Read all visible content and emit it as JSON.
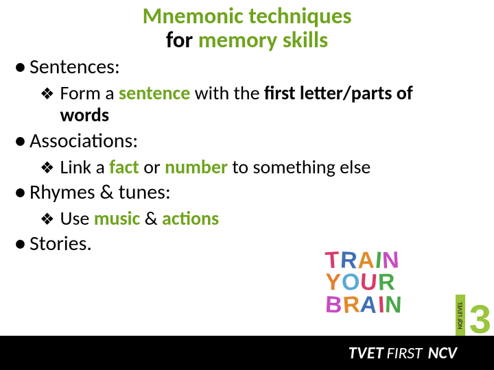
{
  "accent_color": "#6fa31e",
  "title": {
    "line1": "Mnemonic techniques",
    "line2_plain": "for ",
    "line2_accent": "memory skills",
    "title_color": "#6fa31e"
  },
  "bullets": {
    "b1": "Sentences:",
    "s1_pre": "Form a ",
    "s1_b1": "sentence",
    "s1_mid": " with the ",
    "s1_b2": "first letter/parts of words",
    "b2": "Associations:",
    "s2_pre": "Link a ",
    "s2_b1": "fact",
    "s2_mid": " or ",
    "s2_b2": "number",
    "s2_post": " to something else",
    "b3": "Rhymes & tunes:",
    "s3_pre": "Use ",
    "s3_b1": "music",
    "s3_mid": " & ",
    "s3_b2": "actions",
    "b4": "Stories."
  },
  "graphic": {
    "lines": [
      [
        {
          "ch": "T",
          "c": "#d93b6a",
          "r": -4
        },
        {
          "ch": "R",
          "c": "#3f6fb3",
          "r": 3
        },
        {
          "ch": "A",
          "c": "#e08a2b",
          "r": -2
        },
        {
          "ch": "I",
          "c": "#4aa84a",
          "r": 5
        },
        {
          "ch": "N",
          "c": "#c84bc1",
          "r": -3
        }
      ],
      [
        {
          "ch": "Y",
          "c": "#e37f2e",
          "r": 2
        },
        {
          "ch": "O",
          "c": "#5aa9d6",
          "r": -5
        },
        {
          "ch": "U",
          "c": "#d93b6a",
          "r": 4
        },
        {
          "ch": "R",
          "c": "#4aa84a",
          "r": -2
        }
      ],
      [
        {
          "ch": "B",
          "c": "#c84bc1",
          "r": 3
        },
        {
          "ch": "R",
          "c": "#e08a2b",
          "r": -4
        },
        {
          "ch": "A",
          "c": "#3f6fb3",
          "r": 5
        },
        {
          "ch": "I",
          "c": "#d93b6a",
          "r": -3
        },
        {
          "ch": "N",
          "c": "#4aa84a",
          "r": 2
        }
      ]
    ]
  },
  "footer": {
    "tvet": "TVET",
    "first": "FIRST",
    "ncv": "NCV",
    "nqf_label": "NQF LEVEL",
    "level_number": "3",
    "bar_color": "#000000",
    "accent_green": "#9ac53c"
  }
}
